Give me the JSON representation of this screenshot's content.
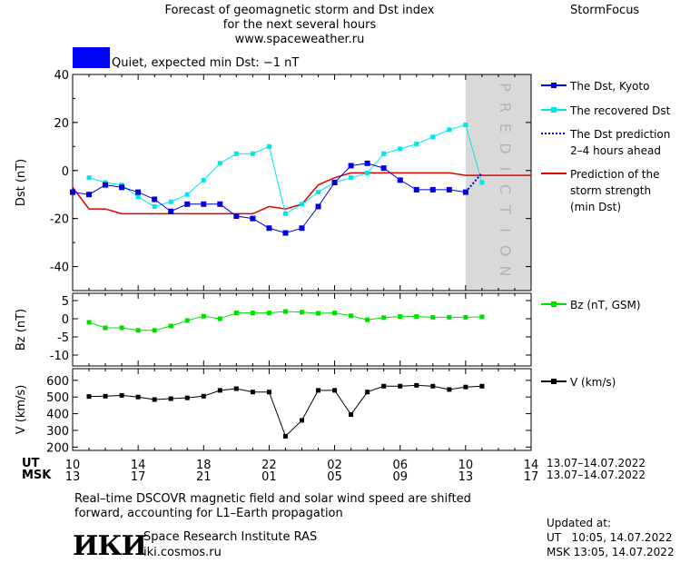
{
  "header": {
    "title_line1": "Forecast of geomagnetic storm and Dst index",
    "title_line2": "for the next several hours",
    "url": "www.spaceweather.ru",
    "brand": "StormFocus",
    "status_color": "#0000ff",
    "status_text": "Quiet, expected min Dst: −1 nT"
  },
  "colors": {
    "dst_kyoto": "#0000dd",
    "dst_recovered": "#00e6e6",
    "storm_strength": "#dd0000",
    "bz": "#00dd00",
    "speed": "#000000",
    "prediction_band": "#d9d9d9"
  },
  "chart_data": [
    {
      "type": "line",
      "ylabel": "Dst (nT)",
      "ylim": [
        -50,
        40
      ],
      "yticks": [
        40,
        20,
        0,
        -20,
        -40
      ],
      "x_hours_ut": [
        10,
        38
      ],
      "prediction_region": [
        34,
        38
      ],
      "prediction_label": "PREDICTION",
      "series": [
        {
          "name": "The Dst, Kyoto",
          "x": [
            10,
            11,
            12,
            13,
            14,
            15,
            16,
            17,
            18,
            19,
            20,
            21,
            22,
            23,
            24,
            25,
            26,
            27,
            28,
            29,
            30,
            31,
            32,
            33,
            34
          ],
          "values": [
            -9,
            -10,
            -6,
            -7,
            -9,
            -12,
            -17,
            -14,
            -14,
            -14,
            -19,
            -20,
            -24,
            -26,
            -24,
            -15,
            -5,
            2,
            3,
            1,
            -4,
            -8,
            -8,
            -8,
            -9
          ]
        },
        {
          "name": "The recovered Dst",
          "x": [
            11,
            12,
            13,
            14,
            15,
            16,
            17,
            18,
            19,
            20,
            21,
            22,
            23,
            24,
            25,
            26,
            27,
            28,
            29,
            30,
            31,
            32,
            33,
            34,
            35
          ],
          "values": [
            -3,
            -5,
            -6,
            -11,
            -15,
            -13,
            -10,
            -4,
            3,
            7,
            7,
            10,
            -18,
            -14,
            -9,
            -5,
            -3,
            -1,
            7,
            9,
            11,
            14,
            17,
            19,
            -5
          ]
        },
        {
          "name": "The Dst prediction",
          "name_line2": "2–4 hours ahead",
          "x": [
            34,
            35
          ],
          "values": [
            -9,
            -1
          ]
        },
        {
          "name": "Prediction of the",
          "name_line2": "storm strength",
          "name_line3": "(min Dst)",
          "x": [
            10,
            11,
            12,
            13,
            14,
            15,
            16,
            17,
            18,
            19,
            20,
            21,
            22,
            23,
            24,
            25,
            26,
            27,
            28,
            29,
            30,
            31,
            32,
            33,
            34,
            35,
            36,
            37,
            38
          ],
          "values": [
            -7,
            -16,
            -16,
            -18,
            -18,
            -18,
            -18,
            -18,
            -18,
            -18,
            -18,
            -18,
            -15,
            -16,
            -14,
            -6,
            -3,
            -1,
            -1,
            -1,
            -1,
            -1,
            -1,
            -1,
            -2,
            -2,
            -2,
            -2,
            -2
          ]
        }
      ]
    },
    {
      "type": "line",
      "ylabel": "Bz (nT)",
      "ylim": [
        -13,
        7
      ],
      "yticks": [
        5,
        0,
        -5,
        -10
      ],
      "series": [
        {
          "name": "Bz (nT, GSM)",
          "x": [
            11,
            12,
            13,
            14,
            15,
            16,
            17,
            18,
            19,
            20,
            21,
            22,
            23,
            24,
            25,
            26,
            27,
            28,
            29,
            30,
            31,
            32,
            33,
            34,
            35
          ],
          "values": [
            -1,
            -2.5,
            -2.5,
            -3.2,
            -3.2,
            -2,
            -0.5,
            0.7,
            0,
            1.6,
            1.6,
            1.6,
            2,
            1.8,
            1.5,
            1.6,
            0.8,
            -0.3,
            0.3,
            0.6,
            0.6,
            0.4,
            0.4,
            0.4,
            0.5
          ]
        }
      ]
    },
    {
      "type": "line",
      "ylabel": "V (km/s)",
      "ylim": [
        180,
        670
      ],
      "yticks": [
        600,
        500,
        400,
        300,
        200
      ],
      "series": [
        {
          "name": "V (km/s)",
          "x": [
            11,
            12,
            13,
            14,
            15,
            16,
            17,
            18,
            19,
            20,
            21,
            22,
            23,
            24,
            25,
            26,
            27,
            28,
            29,
            30,
            31,
            32,
            33,
            34,
            35
          ],
          "values": [
            503,
            505,
            510,
            500,
            485,
            490,
            495,
            505,
            540,
            550,
            530,
            530,
            265,
            360,
            540,
            540,
            395,
            530,
            565,
            565,
            570,
            565,
            545,
            560,
            565
          ]
        }
      ]
    }
  ],
  "axis": {
    "ut_label": "UT",
    "msk_label": "MSK",
    "ut_ticks": [
      "10",
      "14",
      "18",
      "22",
      "02",
      "06",
      "10",
      "14"
    ],
    "msk_ticks": [
      "13",
      "17",
      "21",
      "01",
      "05",
      "09",
      "13",
      "17"
    ],
    "ut_range": "13.07–14.07.2022",
    "msk_range": "13.07–14.07.2022"
  },
  "footer": {
    "note_line1": "Real–time DSCOVR magnetic field and solar wind speed are shifted",
    "note_line2": "forward, accounting for L1–Earth propagation",
    "logo_text": "ИКИ",
    "institute": "Space Research Institute RAS",
    "site": "iki.cosmos.ru",
    "updated_label": "Updated at:",
    "updated_ut": "UT   10:05, 14.07.2022",
    "updated_msk": "MSK 13:05, 14.07.2022"
  }
}
